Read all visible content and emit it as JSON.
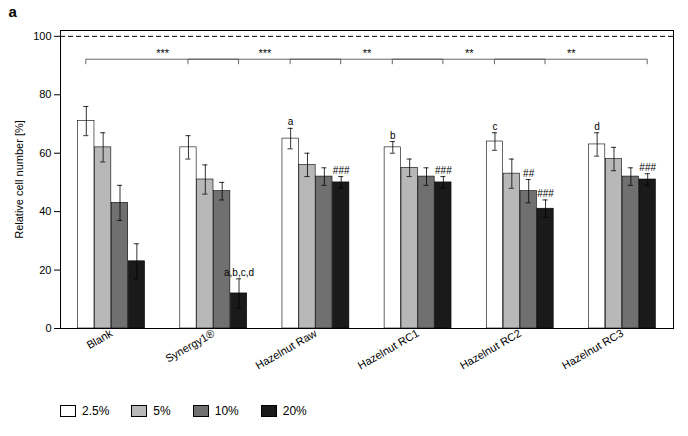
{
  "chart_data": {
    "type": "bar",
    "panel_label": "a",
    "ylabel": "Relative cell number [%]",
    "categories": [
      "Blank",
      "Synergy1®",
      "Hazelnut Raw",
      "Hazelnut RC1",
      "Hazelnut RC2",
      "Hazelnut RC3"
    ],
    "series": [
      {
        "name": "2.5%",
        "color": "#ffffff",
        "values": [
          71,
          62,
          65,
          62,
          64,
          63
        ],
        "errors": [
          5,
          4,
          3.5,
          2,
          3,
          4
        ]
      },
      {
        "name": "5%",
        "color": "#b8b8b8",
        "values": [
          62,
          51,
          56,
          55,
          53,
          58
        ],
        "errors": [
          5,
          5,
          4,
          3,
          5,
          4
        ]
      },
      {
        "name": "10%",
        "color": "#707070",
        "values": [
          43,
          47,
          52,
          52,
          47,
          52
        ],
        "errors": [
          6,
          3,
          3,
          3,
          4,
          3
        ]
      },
      {
        "name": "20%",
        "color": "#1a1a1a",
        "values": [
          23,
          12,
          50,
          50,
          41,
          51
        ],
        "errors": [
          6,
          5,
          2,
          2,
          3,
          2
        ]
      }
    ],
    "ylim": [
      0,
      102
    ],
    "yticks": [
      0,
      20,
      40,
      60,
      80,
      100
    ],
    "grid": false,
    "legend": "bottom",
    "reference_lines": [
      {
        "y": 100,
        "line_style": "dashed"
      }
    ],
    "brackets": [
      {
        "from": "Blank",
        "to": "Synergy1®",
        "y": 92,
        "text": "***"
      },
      {
        "from": "Synergy1®",
        "to": "Hazelnut Raw",
        "y": 92,
        "text": "***"
      },
      {
        "from": "Hazelnut Raw",
        "to": "Hazelnut RC1",
        "y": 92,
        "text": "**"
      },
      {
        "from": "Hazelnut RC1",
        "to": "Hazelnut RC2",
        "y": 92,
        "text": "**"
      },
      {
        "from": "Hazelnut RC2",
        "to": "Hazelnut RC3",
        "y": 92,
        "text": "**"
      }
    ],
    "annotations": [
      {
        "category": "Hazelnut Raw",
        "series": "20%",
        "text": "###"
      },
      {
        "category": "Hazelnut RC1",
        "series": "20%",
        "text": "###"
      },
      {
        "category": "Hazelnut RC2",
        "series": "10%",
        "text": "##"
      },
      {
        "category": "Hazelnut RC2",
        "series": "20%",
        "text": "###"
      },
      {
        "category": "Hazelnut RC3",
        "series": "20%",
        "text": "###"
      },
      {
        "category": "Synergy1®",
        "series": "20%",
        "text": "a,b,c,d"
      },
      {
        "category": "Hazelnut Raw",
        "series": "2.5%",
        "text": "a"
      },
      {
        "category": "Hazelnut RC1",
        "series": "2.5%",
        "text": "b"
      },
      {
        "category": "Hazelnut RC2",
        "series": "2.5%",
        "text": "c"
      },
      {
        "category": "Hazelnut RC3",
        "series": "2.5%",
        "text": "d"
      }
    ]
  }
}
